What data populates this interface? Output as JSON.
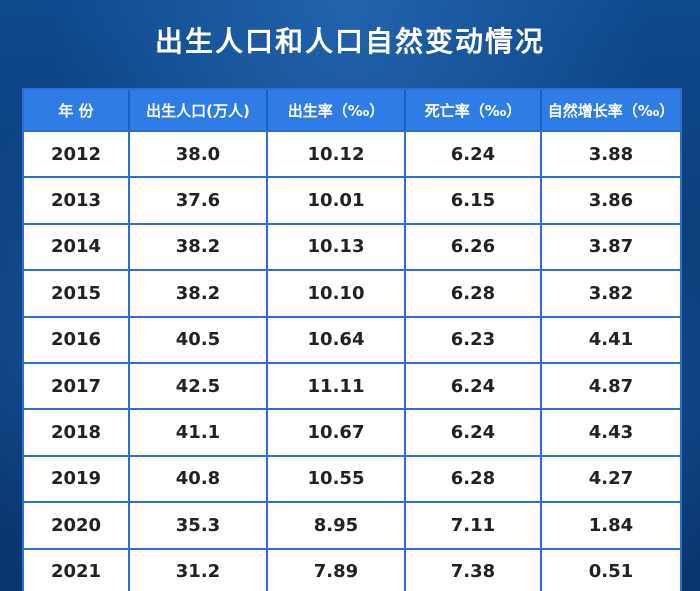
{
  "title": "出生人口和人口自然变动情况",
  "chart_data": {
    "type": "table",
    "title": "出生人口和人口自然变动情况",
    "columns": [
      "年 份",
      "出生人口(万人)",
      "出生率（‰）",
      "死亡率（‰）",
      "自然增长率（‰）"
    ],
    "rows": [
      [
        "2012",
        "38.0",
        "10.12",
        "6.24",
        "3.88"
      ],
      [
        "2013",
        "37.6",
        "10.01",
        "6.15",
        "3.86"
      ],
      [
        "2014",
        "38.2",
        "10.13",
        "6.26",
        "3.87"
      ],
      [
        "2015",
        "38.2",
        "10.10",
        "6.28",
        "3.82"
      ],
      [
        "2016",
        "40.5",
        "10.64",
        "6.23",
        "4.41"
      ],
      [
        "2017",
        "42.5",
        "11.11",
        "6.24",
        "4.87"
      ],
      [
        "2018",
        "41.1",
        "10.67",
        "6.24",
        "4.43"
      ],
      [
        "2019",
        "40.8",
        "10.55",
        "6.28",
        "4.27"
      ],
      [
        "2020",
        "35.3",
        "8.95",
        "7.11",
        "1.84"
      ],
      [
        "2021",
        "31.2",
        "7.89",
        "7.38",
        "0.51"
      ]
    ]
  },
  "colors": {
    "background": "#0b3d78",
    "header": "#2f7ce6",
    "grid": "#2d6fd0",
    "cell": "#ffffff",
    "text": "#222222"
  }
}
